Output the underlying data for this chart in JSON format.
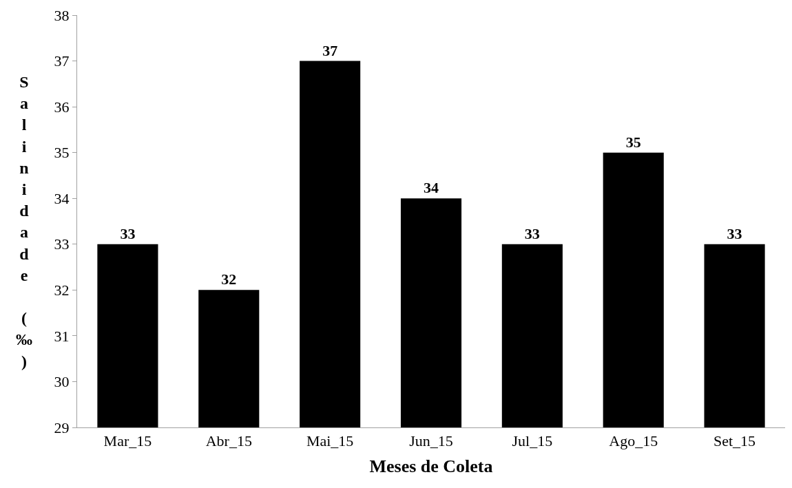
{
  "chart_data": {
    "type": "bar",
    "xlabel": "Meses de Coleta",
    "ylabel": "Salinidade (‰)",
    "categories": [
      "Mar_15",
      "Abr_15",
      "Mai_15",
      "Jun_15",
      "Jul_15",
      "Ago_15",
      "Set_15"
    ],
    "values": [
      33,
      32,
      37,
      34,
      33,
      35,
      33
    ],
    "color": "#000000",
    "ylim": [
      29,
      38
    ],
    "yticks": [
      29,
      30,
      31,
      32,
      33,
      34,
      35,
      36,
      37,
      38
    ],
    "data_labels": true
  }
}
